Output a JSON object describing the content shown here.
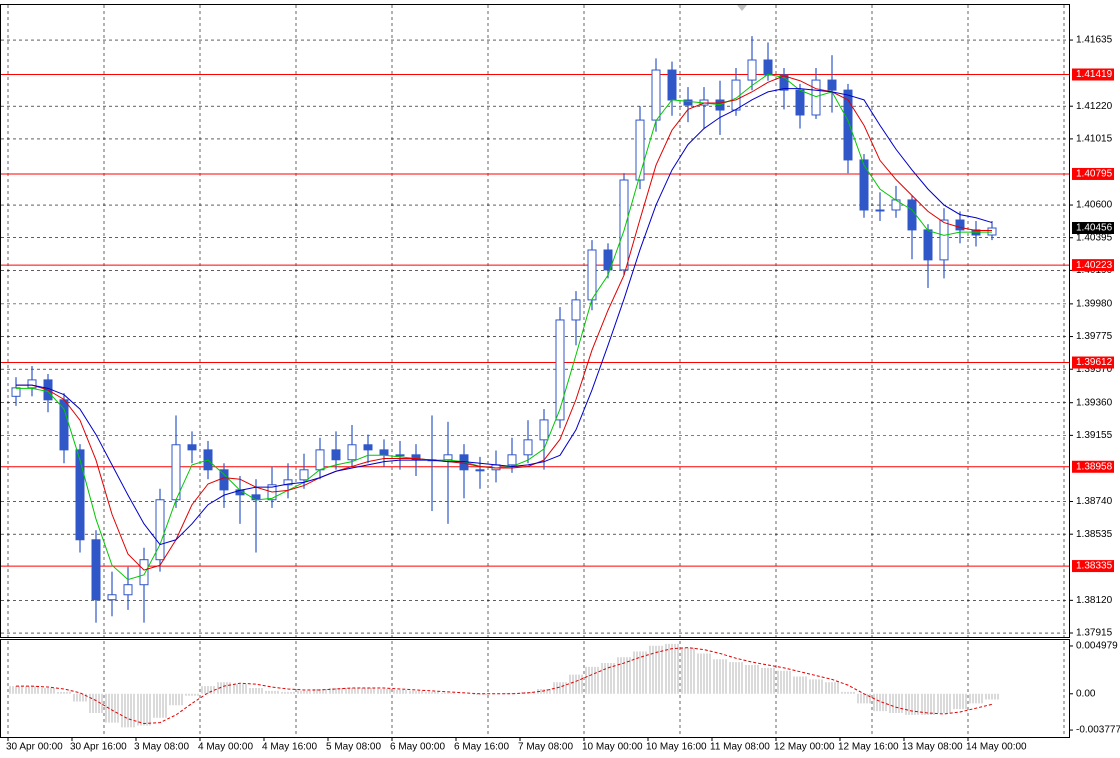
{
  "chart_data": [
    {
      "type": "candlestick",
      "ylim": [
        1.3789,
        1.41855
      ],
      "yticks": [
        1.41635,
        {
          "value": 1.4122,
          "label": "1.41220"
        },
        1.41015,
        {
          "value": 1.406,
          "label": "1.40600"
        },
        1.40395,
        {
          "value": 1.4019,
          "label": "1.40190"
        },
        {
          "value": 1.3998,
          "label": "1.39980"
        },
        1.39775,
        {
          "value": 1.3957,
          "label": "1.39570"
        },
        {
          "value": 1.3936,
          "label": "1.39360"
        },
        1.39155,
        {
          "value": 1.3874,
          "label": "1.38740"
        },
        1.38535,
        {
          "value": 1.3812,
          "label": "1.38120"
        },
        1.37915
      ],
      "x_labels": [
        {
          "value": 0,
          "label": "30 Apr 00:00"
        },
        {
          "value": 4,
          "label": "30 Apr 16:00"
        },
        {
          "value": 8,
          "label": "3 May 08:00"
        },
        {
          "value": 12,
          "label": "4 May 00:00"
        },
        {
          "value": 16,
          "label": "4 May 16:00"
        },
        {
          "value": 20,
          "label": "5 May 08:00"
        },
        {
          "value": 24,
          "label": "6 May 00:00"
        },
        {
          "value": 28,
          "label": "6 May 16:00"
        },
        {
          "value": 32,
          "label": "7 May 08:00"
        },
        {
          "value": 36,
          "label": "10 May 00:00"
        },
        {
          "value": 40,
          "label": "10 May 16:00"
        },
        {
          "value": 44,
          "label": "11 May 08:00"
        },
        {
          "value": 48,
          "label": "12 May 00:00"
        },
        {
          "value": 52,
          "label": "12 May 16:00"
        },
        {
          "value": 56,
          "label": "13 May 08:00"
        },
        {
          "value": 60,
          "label": "14 May 00:00"
        }
      ],
      "grid": true,
      "color": "#3057c8",
      "open": [
        1.394,
        1.39453,
        1.39503,
        1.39378,
        1.39064,
        1.385,
        1.38124,
        1.38155,
        1.38218,
        1.38375,
        1.38751,
        1.39096,
        1.39064,
        1.38939,
        1.38813,
        1.38782,
        1.38751,
        1.38845,
        1.38876,
        1.38939,
        1.39064,
        1.39002,
        1.39096,
        1.39064,
        1.39033,
        1.39033,
        1.39002,
        1.39002,
        1.39033,
        1.38939,
        1.38939,
        1.3897,
        1.39033,
        1.39127,
        1.39252,
        1.39879,
        1.40005,
        1.40318,
        1.40193,
        1.40757,
        1.41133,
        1.41447,
        1.41259,
        1.41227,
        1.41259,
        1.41196,
        1.41384,
        1.4151,
        1.41416,
        1.41321,
        1.41165,
        1.41384,
        1.41321,
        1.40883,
        1.40569,
        1.40569,
        1.40632,
        1.40444,
        1.40256,
        1.40506,
        1.40444,
        1.40412
      ],
      "high": [
        1.3952,
        1.3959,
        1.3954,
        1.3942,
        1.391,
        1.3856,
        1.383,
        1.3833,
        1.3845,
        1.3882,
        1.3928,
        1.3918,
        1.3912,
        1.3898,
        1.389,
        1.3888,
        1.3896,
        1.3898,
        1.3904,
        1.3914,
        1.3918,
        1.3922,
        1.3916,
        1.3913,
        1.3912,
        1.391,
        1.3928,
        1.3924,
        1.391,
        1.3902,
        1.3906,
        1.3914,
        1.3925,
        1.3932,
        1.3996,
        1.4006,
        1.4038,
        1.4036,
        1.408,
        1.4122,
        1.4152,
        1.415,
        1.4134,
        1.4134,
        1.4138,
        1.4146,
        1.4166,
        1.4162,
        1.4146,
        1.4136,
        1.4146,
        1.4154,
        1.4136,
        1.4092,
        1.4068,
        1.4072,
        1.4066,
        1.4048,
        1.4058,
        1.4056,
        1.405,
        1.405
      ],
      "low": [
        1.3934,
        1.394,
        1.393,
        1.3898,
        1.3842,
        1.3798,
        1.3802,
        1.3806,
        1.3798,
        1.383,
        1.387,
        1.3898,
        1.3888,
        1.387,
        1.386,
        1.3842,
        1.387,
        1.3876,
        1.3882,
        1.3888,
        1.3894,
        1.3896,
        1.3898,
        1.3896,
        1.3894,
        1.389,
        1.3868,
        1.386,
        1.3876,
        1.3882,
        1.3886,
        1.3892,
        1.3898,
        1.3894,
        1.392,
        1.3972,
        1.3994,
        1.4014,
        1.4016,
        1.407,
        1.4106,
        1.4116,
        1.4112,
        1.4108,
        1.4104,
        1.4116,
        1.4132,
        1.4138,
        1.412,
        1.4108,
        1.4114,
        1.4118,
        1.408,
        1.4052,
        1.405,
        1.4052,
        1.4026,
        1.4008,
        1.4014,
        1.4036,
        1.4034,
        1.4038
      ],
      "close": [
        1.39453,
        1.39503,
        1.39378,
        1.39064,
        1.385,
        1.38124,
        1.38155,
        1.38218,
        1.38375,
        1.38751,
        1.39096,
        1.39064,
        1.38939,
        1.38813,
        1.38782,
        1.38751,
        1.38845,
        1.38876,
        1.38939,
        1.39064,
        1.39002,
        1.39096,
        1.39064,
        1.39033,
        1.39033,
        1.39002,
        1.39002,
        1.39033,
        1.38939,
        1.38939,
        1.3897,
        1.39033,
        1.39127,
        1.39252,
        1.39879,
        1.40005,
        1.40318,
        1.40193,
        1.40757,
        1.41133,
        1.41447,
        1.41259,
        1.41227,
        1.41259,
        1.41196,
        1.41384,
        1.4151,
        1.41416,
        1.41321,
        1.41165,
        1.41384,
        1.41321,
        1.40883,
        1.40569,
        1.40569,
        1.40632,
        1.40444,
        1.40256,
        1.40506,
        1.40444,
        1.40412,
        1.40456
      ],
      "series": [
        {
          "color": "#00c800",
          "values": [
            1.3945,
            1.3945,
            1.3943,
            1.3932,
            1.39,
            1.3863,
            1.3834,
            1.3825,
            1.3828,
            1.3847,
            1.3875,
            1.3897,
            1.39,
            1.3891,
            1.3881,
            1.3875,
            1.3876,
            1.3881,
            1.3886,
            1.3894,
            1.3897,
            1.3899,
            1.3903,
            1.3903,
            1.3902,
            1.3901,
            1.39,
            1.39,
            1.3899,
            1.3896,
            1.3895,
            1.3896,
            1.39,
            1.3907,
            1.3932,
            1.3966,
            1.4001,
            1.4016,
            1.4044,
            1.4079,
            1.4113,
            1.4126,
            1.4125,
            1.4124,
            1.4123,
            1.4127,
            1.4135,
            1.4142,
            1.414,
            1.4132,
            1.4128,
            1.4131,
            1.4113,
            1.4085,
            1.407,
            1.4063,
            1.4057,
            1.4044,
            1.4041,
            1.4043,
            1.4043,
            1.4043
          ]
        },
        {
          "color": "#e00000",
          "values": [
            1.3947,
            1.3947,
            1.3944,
            1.3938,
            1.3925,
            1.39,
            1.3866,
            1.3841,
            1.3831,
            1.3834,
            1.385,
            1.3872,
            1.3885,
            1.3889,
            1.3888,
            1.3883,
            1.388,
            1.3881,
            1.3884,
            1.3889,
            1.3893,
            1.3896,
            1.3899,
            1.3901,
            1.3901,
            1.3901,
            1.39,
            1.3899,
            1.3898,
            1.3896,
            1.3895,
            1.3895,
            1.3896,
            1.39,
            1.3913,
            1.3938,
            1.3969,
            1.3994,
            1.4016,
            1.4051,
            1.4085,
            1.4107,
            1.412,
            1.4124,
            1.4124,
            1.4126,
            1.4131,
            1.4137,
            1.4141,
            1.4138,
            1.4133,
            1.4131,
            1.4126,
            1.411,
            1.4088,
            1.4076,
            1.4066,
            1.4056,
            1.4049,
            1.4046,
            1.4044,
            1.4044
          ]
        },
        {
          "color": "#0000c8",
          "values": [
            1.3947,
            1.3947,
            1.3945,
            1.3941,
            1.3932,
            1.3916,
            1.3897,
            1.3878,
            1.386,
            1.3847,
            1.385,
            1.386,
            1.3872,
            1.3878,
            1.3881,
            1.3883,
            1.3883,
            1.3885,
            1.3886,
            1.3889,
            1.3893,
            1.3895,
            1.3897,
            1.3899,
            1.39,
            1.39,
            1.39,
            1.3899,
            1.3899,
            1.3898,
            1.3897,
            1.3896,
            1.3897,
            1.3899,
            1.3903,
            1.3919,
            1.3944,
            1.3972,
            1.4001,
            1.4032,
            1.406,
            1.4082,
            1.4098,
            1.4108,
            1.4115,
            1.412,
            1.4126,
            1.4131,
            1.4133,
            1.4133,
            1.4132,
            1.4131,
            1.4129,
            1.4126,
            1.411,
            1.4095,
            1.4082,
            1.407,
            1.406,
            1.4054,
            1.4052,
            1.4049
          ]
        }
      ],
      "levels": {
        "color": "#ff0000",
        "values": [
          1.41419,
          1.40795,
          1.40223,
          1.39612,
          1.38958,
          1.38335
        ]
      },
      "last_price": 1.40456
    },
    {
      "type": "bar",
      "ylim": [
        -0.0045,
        0.0056
      ],
      "yticks": [
        0.004979,
        {
          "value": 0,
          "label": "0.00"
        },
        -0.003777
      ],
      "color": "#b4b4b4",
      "values": [
        0.0008,
        0.0008,
        0.0006,
        0.0002,
        -0.0008,
        -0.002,
        -0.003,
        -0.0035,
        -0.0033,
        -0.0025,
        -0.0012,
        -0.0002,
        0.0008,
        0.0012,
        0.001,
        0.0006,
        0.0003,
        0.0002,
        0.0003,
        0.0005,
        0.0006,
        0.0006,
        0.0006,
        0.0005,
        0.0004,
        0.0003,
        0.0002,
        0.0001,
        0,
        -0.0001,
        0,
        0.0001,
        0.0002,
        0.0005,
        0.0012,
        0.002,
        0.0028,
        0.0032,
        0.0038,
        0.0044,
        0.005,
        0.0052,
        0.0048,
        0.0042,
        0.0036,
        0.0033,
        0.003,
        0.0027,
        0.0024,
        0.0018,
        0.0015,
        0.0012,
        0.0002,
        -0.001,
        -0.0018,
        -0.002,
        -0.0022,
        -0.0022,
        -0.002,
        -0.0016,
        -0.001,
        -0.0006
      ],
      "signal": {
        "color": "#e00000",
        "values": [
          0.0008,
          0.0008,
          0.0007,
          0.0005,
          0.0001,
          -0.0007,
          -0.0017,
          -0.0026,
          -0.0031,
          -0.003,
          -0.0022,
          -0.001,
          0.0001,
          0.0008,
          0.0011,
          0.001,
          0.0007,
          0.0005,
          0.0004,
          0.0004,
          0.0005,
          0.0006,
          0.0006,
          0.0006,
          0.0005,
          0.0004,
          0.0003,
          0.0002,
          0.0001,
          0,
          0,
          0,
          0.0001,
          0.0003,
          0.0007,
          0.0013,
          0.002,
          0.0027,
          0.0032,
          0.0038,
          0.0043,
          0.0047,
          0.0048,
          0.0046,
          0.0042,
          0.0037,
          0.0033,
          0.003,
          0.0027,
          0.0023,
          0.0019,
          0.0015,
          0.0009,
          0,
          -0.0008,
          -0.0014,
          -0.0018,
          -0.002,
          -0.0021,
          -0.0019,
          -0.0015,
          -0.0011
        ]
      }
    }
  ]
}
